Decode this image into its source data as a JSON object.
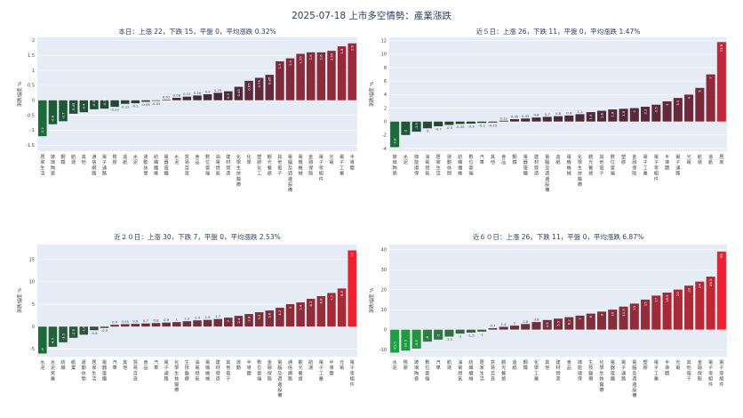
{
  "title": "2025-07-18 上市多空情勢：產業漲跌",
  "chart_data": [
    {
      "type": "bar",
      "title": "本日：上漲 22，下跌 15，平盤 0，平均漲跌 0.32%",
      "ylabel": "漲跌幅度 %",
      "ylim": [
        -1.7,
        2.1
      ],
      "yticks": [
        -1.5,
        -1,
        -0.5,
        0,
        0.5,
        1,
        1.5,
        2
      ],
      "categories": [
        "居家生活",
        "玻璃陶瓷",
        "鋼鐵",
        "航運",
        "其他",
        "通信網路",
        "電子通路",
        "橡膠",
        "造紙",
        "水泥",
        "運動休閒",
        "紡織纖維",
        "電器電纜",
        "水泥",
        "貿易百貨",
        "食品",
        "數位雲端",
        "油電燃氣",
        "建材營造",
        "化學生技醫療",
        "化學",
        "塑膠化工",
        "觀光餐旅",
        "其他電子",
        "電腦及週邊設備",
        "電機機械",
        "金融保險",
        "電子零組件",
        "光電",
        "電子工業",
        "半導體"
      ],
      "values": [
        -1.2,
        -0.8,
        -0.7,
        -0.45,
        -0.4,
        -0.3,
        -0.28,
        -0.22,
        -0.12,
        -0.1,
        -0.05,
        -0.02,
        0.02,
        0.08,
        0.12,
        0.16,
        0.2,
        0.25,
        0.3,
        0.45,
        0.65,
        0.75,
        0.85,
        1.3,
        1.4,
        1.55,
        1.6,
        1.6,
        1.65,
        1.8,
        1.9
      ],
      "labels": [
        "-1.2",
        "-0.8",
        "-0.7",
        "-0.45",
        "-0.4",
        "-0.3",
        "-0.28",
        "-0.22",
        "-0.12",
        "-0.1",
        "-0.05",
        "-0.02",
        "0.02",
        "0.08",
        "0.12",
        "0.16",
        "0.2",
        "0.25",
        "0.3",
        "0.45",
        "0.65",
        "0.75",
        "0.85",
        "1.3",
        "1.4",
        "1.55",
        "1.6",
        "1.6",
        "1.65",
        "1.8",
        "1.9"
      ],
      "colorscale": [
        "#1a6b35",
        "#2a2a3a",
        "#9c2a3a"
      ]
    },
    {
      "type": "bar",
      "title": "近５日：上漲 26，下跌 11，平盤 0，平均漲跌 1.47%",
      "ylabel": "漲跌幅度 %",
      "ylim": [
        -4.4,
        12.5
      ],
      "yticks": [
        -4,
        -2,
        0,
        2,
        4,
        6,
        8,
        10,
        12
      ],
      "categories": [
        "玻璃陶瓷",
        "水泥",
        "綠能環保",
        "油電燃氣",
        "居家生活",
        "運動休閒",
        "紡織纖維",
        "數位雲端",
        "汽車",
        "其他",
        "食品",
        "鋼鐵",
        "電器電纜",
        "建材營造",
        "電腦及週邊設備",
        "造紙",
        "電機機械",
        "化學生技醫療",
        "觀光餐旅",
        "其他電子",
        "數位雲端",
        "塑膠",
        "金融保險",
        "電子工業",
        "電子零組件",
        "半導體",
        "電子通路",
        "光電",
        "航運",
        "造紙",
        "居家"
      ],
      "values": [
        -3.8,
        -2.0,
        -1.5,
        -1.0,
        -0.7,
        -0.5,
        -0.35,
        -0.3,
        -0.2,
        -0.15,
        0.12,
        0.35,
        0.45,
        0.6,
        0.7,
        0.8,
        0.9,
        1.1,
        1.4,
        1.6,
        1.8,
        1.9,
        2.0,
        2.2,
        2.5,
        3.0,
        3.5,
        4.0,
        5.0,
        7.0,
        11.8
      ],
      "labels": [
        "-3.8",
        "-2",
        "-1.5",
        "-1",
        "-0.7",
        "-0.5",
        "-0.35",
        "-0.3",
        "-0.2",
        "-0.15",
        "0.12",
        "0.35",
        "0.45",
        "0.6",
        "0.7",
        "0.8",
        "0.9",
        "1.1",
        "1.4",
        "1.6",
        "1.8",
        "1.9",
        "2",
        "2.2",
        "2.5",
        "3",
        "3.5",
        "4",
        "5",
        "7",
        "11.8"
      ],
      "colorscale": [
        "#1a6b35",
        "#2a2a3a",
        "#c2283a"
      ]
    },
    {
      "type": "bar",
      "title": "近２０日：上漲 30，下跌 7，平盤 0，平均漲跌 2.53%",
      "ylabel": "漲跌幅度 %",
      "ylim": [
        -6.7,
        18.3
      ],
      "yticks": [
        -5,
        0,
        5,
        10,
        15
      ],
      "categories": [
        "水泥",
        "水泥窯業",
        "紡織",
        "紙業",
        "運動休閒",
        "居家生活",
        "電器電纜",
        "汽車",
        "其他",
        "貿易百貨",
        "食品",
        "汽車",
        "電子通路",
        "化學生技醫療",
        "生技醫療",
        "油電燃氣",
        "電機機械",
        "建材營造",
        "其他電子",
        "運動",
        "半導體",
        "數位雲端",
        "金融保險",
        "電腦及週邊設備",
        "通信網路",
        "觀光餐旅",
        "航運",
        "電子工業",
        "半導體",
        "光電",
        "電子零組件"
      ],
      "values": [
        -6.0,
        -4.5,
        -3.5,
        -2.5,
        -1.8,
        -0.8,
        -0.3,
        0.4,
        0.55,
        0.6,
        0.7,
        0.8,
        0.9,
        1.0,
        1.2,
        1.4,
        1.5,
        1.7,
        2.0,
        2.4,
        2.8,
        3.2,
        3.6,
        4.2,
        5.0,
        5.4,
        6.2,
        6.8,
        7.5,
        8.5,
        17.0
      ],
      "labels": [
        "-6",
        "-4.5",
        "-3.5",
        "-2.5",
        "-1.8",
        "-0.8",
        "-0.3",
        "0.4",
        "0.55",
        "0.6",
        "0.7",
        "0.8",
        "0.9",
        "1",
        "1.2",
        "1.4",
        "1.5",
        "1.7",
        "2",
        "2.4",
        "2.8",
        "3.2",
        "3.6",
        "4.2",
        "5",
        "5.4",
        "6.2",
        "6.8",
        "7.5",
        "8.5",
        "17"
      ],
      "colorscale": [
        "#1a6b35",
        "#4a3540",
        "#ee2030"
      ]
    },
    {
      "type": "bar",
      "title": "近６０日：上漲 26，下跌 11，平盤 0，平均漲跌 6.87%",
      "ylabel": "漲跌幅度 %",
      "ylim": [
        -13.5,
        42.5
      ],
      "yticks": [
        -10,
        0,
        10,
        20,
        30,
        40
      ],
      "categories": [
        "水泥",
        "橡膠",
        "玻璃陶瓷",
        "數位雲端",
        "汽車",
        "航運",
        "油電燃氣",
        "紡織纖維",
        "居家生活",
        "貿易百貨",
        "觀光餐旅",
        "造紙",
        "鋼鐵",
        "化學工業",
        "其他",
        "建材營造",
        "食品",
        "綠能環保",
        "生技醫療",
        "化學生技醫療",
        "電器電纜",
        "電子通路",
        "電腦及週邊設備",
        "塑膠",
        "電子工業",
        "半導體",
        "光電",
        "其他電子",
        "金融保險",
        "電子零組件",
        "電子零組件"
      ],
      "values": [
        -11.5,
        -10.5,
        -9.5,
        -6.0,
        -5.0,
        -3.5,
        -2.0,
        -1.5,
        -1.0,
        0.7,
        1.4,
        2.0,
        2.8,
        3.8,
        4.8,
        5.5,
        6.2,
        7.0,
        8.0,
        9.0,
        10.0,
        11.5,
        13.0,
        15.0,
        17.0,
        18.5,
        20.0,
        22.0,
        24.0,
        26.5,
        39.0
      ],
      "labels": [
        "-11.5",
        "-10.5",
        "-9.5",
        "-6",
        "-5",
        "-3.5",
        "-2",
        "-1.5",
        "-1",
        "0.7",
        "1.4",
        "2",
        "2.8",
        "3.8",
        "4.8",
        "5.5",
        "6.2",
        "7",
        "8",
        "9",
        "10",
        "11.5",
        "13",
        "15",
        "17",
        "18.5",
        "20",
        "22",
        "24",
        "26.5",
        "39"
      ],
      "colorscale": [
        "#1fa040",
        "#4a3540",
        "#ee2030"
      ]
    }
  ]
}
